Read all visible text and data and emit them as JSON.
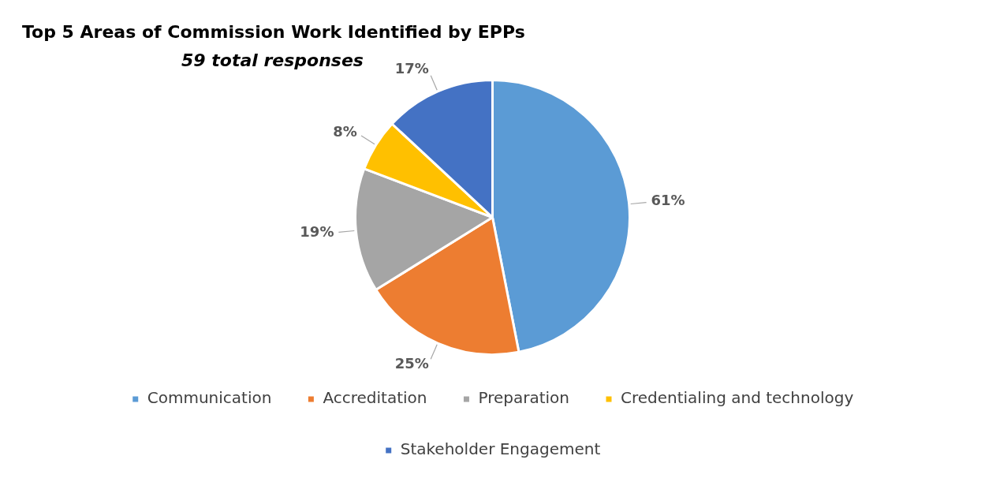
{
  "chart_data": {
    "type": "pie",
    "title": "Top 5 Areas of Commission Work Identified by EPPs",
    "subtitle": "59 total responses",
    "categories": [
      "Communication",
      "Accreditation",
      "Preparation",
      "Credentialing and technology",
      "Stakeholder Engagement"
    ],
    "values": [
      61,
      25,
      19,
      8,
      17
    ],
    "colors": [
      "#5b9bd5",
      "#ed7d31",
      "#a5a5a5",
      "#ffc000",
      "#4472c4"
    ],
    "value_labels": [
      "61%",
      "25%",
      "19%",
      "8%",
      "17%"
    ],
    "legend": "bottom"
  }
}
